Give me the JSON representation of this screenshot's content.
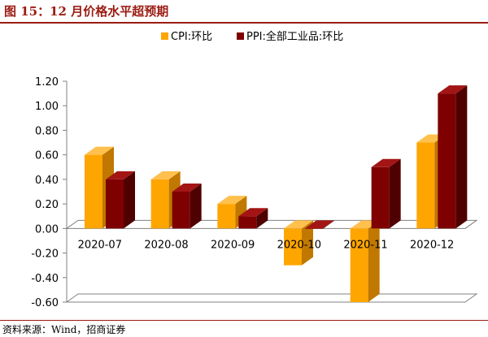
{
  "figure_title": "图 15：12 月价格水平超预期",
  "source_note": "资料来源：Wind，招商证券",
  "colors": {
    "title": "#9b1c12",
    "cpi_front": "#ffa500",
    "cpi_side": "#c07800",
    "cpi_top": "#ffc04d",
    "ppi_front": "#7f0000",
    "ppi_side": "#4f0000",
    "ppi_top": "#a31515"
  },
  "chart_data": {
    "type": "bar",
    "style": "3d-clustered",
    "categories": [
      "2020-07",
      "2020-08",
      "2020-09",
      "2020-10",
      "2020-11",
      "2020-12"
    ],
    "series": [
      {
        "name": "CPI:环比",
        "values": [
          0.6,
          0.4,
          0.2,
          -0.3,
          -0.6,
          0.7
        ]
      },
      {
        "name": "PPI:全部工业品:环比",
        "values": [
          0.4,
          0.3,
          0.1,
          0.0,
          0.5,
          1.1
        ]
      }
    ],
    "yticks": [
      "1.20",
      "1.00",
      "0.80",
      "0.60",
      "0.40",
      "0.20",
      "0.00",
      "-0.20",
      "-0.40",
      "-0.60"
    ],
    "ylim": [
      -0.6,
      1.2
    ],
    "legend_position": "top",
    "grid": false
  }
}
